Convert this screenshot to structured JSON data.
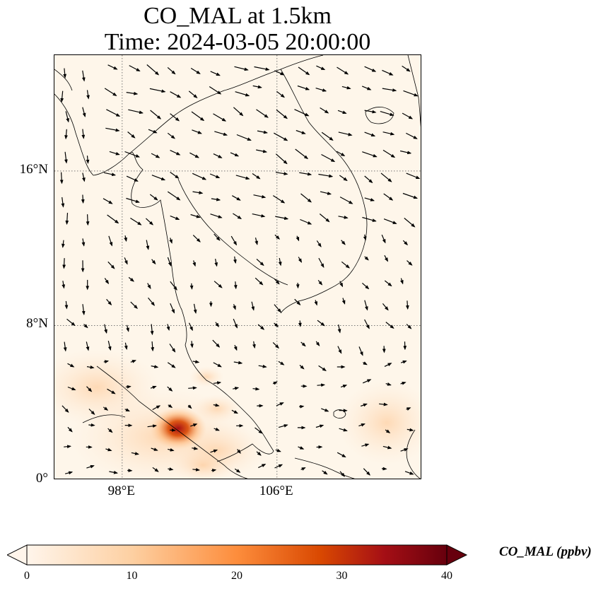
{
  "title_line1": "CO_MAL at 1.5km",
  "title_line2": "Time: 2024-03-05 20:00:00",
  "axes": {
    "lon_range": [
      94.5,
      113.5
    ],
    "lat_range": [
      0,
      22
    ],
    "x_ticks": [
      {
        "value": 98,
        "label": "98°E"
      },
      {
        "value": 106,
        "label": "106°E"
      }
    ],
    "y_ticks": [
      {
        "value": 16,
        "label": "16°N"
      },
      {
        "value": 8,
        "label": "8°N"
      },
      {
        "value": 0,
        "label": "0°"
      }
    ],
    "grid": "dotted"
  },
  "colorbar": {
    "label": "CO_MAL (ppbv)",
    "ticks": [
      "0",
      "10",
      "20",
      "30",
      "40"
    ],
    "min": 0,
    "max": 40,
    "extend": "both",
    "colormap": [
      "#fff5eb",
      "#fdd0a2",
      "#fd8d3c",
      "#d94801",
      "#a50f15",
      "#67000d"
    ]
  },
  "plume": {
    "peak_location": [
      100.2,
      2.8
    ],
    "peak_value": 34,
    "color_hot": "#b2182b"
  }
}
